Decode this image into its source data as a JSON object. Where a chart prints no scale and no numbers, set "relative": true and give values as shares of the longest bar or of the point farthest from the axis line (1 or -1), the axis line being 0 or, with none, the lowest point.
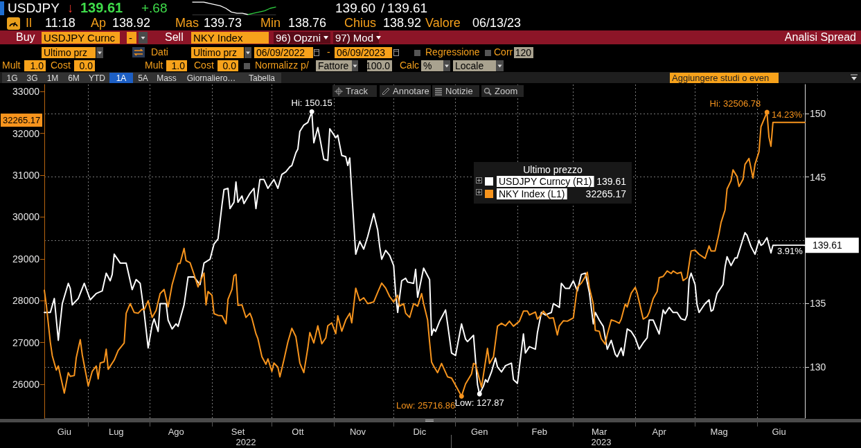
{
  "chart_data": [
    {
      "type": "line",
      "relative": true,
      "categories": [
        null,
        null,
        null,
        null,
        null,
        null,
        null,
        null,
        null,
        null,
        null,
        null,
        null,
        null,
        null,
        null
      ],
      "series": [
        {
          "color": "#ffffff",
          "values": [
            1,
            1,
            1,
            0.9,
            0.8,
            0.7,
            0.5,
            0.2,
            0.1,
            0.1,
            0,
            null,
            null,
            null,
            null,
            null
          ]
        },
        {
          "color": "#2ecc40",
          "values": [
            null,
            null,
            null,
            null,
            null,
            null,
            null,
            null,
            null,
            null,
            0,
            0.1,
            0.2,
            0.3,
            0.5,
            0.6
          ]
        }
      ]
    },
    {
      "type": "line",
      "xlim": [
        "2022-06-09",
        "2023-06-25"
      ],
      "xticks": [
        {
          "value": "2022-06-19",
          "label": "Giu"
        },
        {
          "value": "2022-07-01",
          "label": null
        },
        {
          "value": "2022-07-15",
          "label": "Lug"
        },
        {
          "value": "2022-08-01",
          "label": null
        },
        {
          "value": "2022-08-14",
          "label": "Ago"
        },
        {
          "value": "2022-09-01",
          "label": null
        },
        {
          "value": "2022-09-14",
          "label": "Set"
        },
        {
          "value": "2022-10-01",
          "label": null
        },
        {
          "value": "2022-10-14",
          "label": "Ott"
        },
        {
          "value": "2022-11-01",
          "label": null
        },
        {
          "value": "2022-11-13",
          "label": "Nov"
        },
        {
          "value": "2022-12-01",
          "label": null
        },
        {
          "value": "2022-12-14",
          "label": "Dic"
        },
        {
          "value": "2023-01-01",
          "label": null
        },
        {
          "value": "2023-01-13",
          "label": "Gen"
        },
        {
          "value": "2023-02-01",
          "label": null
        },
        {
          "value": "2023-02-12",
          "label": "Feb"
        },
        {
          "value": "2023-03-01",
          "label": null
        },
        {
          "value": "2023-03-14",
          "label": "Mar"
        },
        {
          "value": "2023-04-01",
          "label": null
        },
        {
          "value": "2023-04-13",
          "label": "Apr"
        },
        {
          "value": "2023-05-01",
          "label": null
        },
        {
          "value": "2023-05-13",
          "label": "Mag"
        },
        {
          "value": "2023-06-01",
          "label": null
        },
        {
          "value": "2023-06-12",
          "label": "Giu"
        }
      ],
      "ylim": [
        25190,
        33170
      ],
      "yticks": [
        26000,
        27000,
        28000,
        29000,
        30000,
        31000,
        32000,
        33000
      ],
      "y2lim": [
        125.95,
        152.3
      ],
      "y2ticks": [
        130,
        135,
        {
          "value": 140,
          "label": null
        },
        145,
        150
      ],
      "grid": true,
      "legend": "top right",
      "legend_title": "Ultimo prezzo",
      "series": [
        {
          "name": "USDJPY Curncy (R1)",
          "color": "#ffffff",
          "axis": "y2",
          "x": [
            "2022-06-09",
            "2022-06-12",
            "2022-06-14",
            "2022-06-16",
            "2022-06-18",
            "2022-06-21",
            "2022-06-22",
            "2022-06-23",
            "2022-06-26",
            "2022-06-29",
            "2022-07-02",
            "2022-07-05",
            "2022-07-08",
            "2022-07-10",
            "2022-07-12",
            "2022-07-13",
            "2022-07-14",
            "2022-07-17",
            "2022-07-20",
            "2022-07-23",
            "2022-07-25",
            "2022-07-27",
            "2022-07-29",
            "2022-07-31",
            "2022-08-02",
            "2022-08-03",
            "2022-08-05",
            "2022-08-06",
            "2022-08-09",
            "2022-08-10",
            "2022-08-12",
            "2022-08-14",
            "2022-08-15",
            "2022-08-18",
            "2022-08-20",
            "2022-08-23",
            "2022-08-26",
            "2022-08-28",
            "2022-08-31",
            "2022-09-02",
            "2022-09-04",
            "2022-09-06",
            "2022-09-07",
            "2022-09-09",
            "2022-09-10",
            "2022-09-12",
            "2022-09-13",
            "2022-09-14",
            "2022-09-16",
            "2022-09-17",
            "2022-09-20",
            "2022-09-22",
            "2022-09-23",
            "2022-09-25",
            "2022-09-27",
            "2022-09-29",
            "2022-10-02",
            "2022-10-04",
            "2022-10-06",
            "2022-10-08",
            "2022-10-10",
            "2022-10-11",
            "2022-10-13",
            "2022-10-14",
            "2022-10-15",
            "2022-10-17",
            "2022-10-19",
            "2022-10-21",
            "2022-10-22",
            "2022-10-24",
            "2022-10-25",
            "2022-10-27",
            "2022-10-29",
            "2022-10-30",
            "2022-11-02",
            "2022-11-03",
            "2022-11-05",
            "2022-11-07",
            "2022-11-08",
            "2022-11-09",
            "2022-11-10",
            "2022-11-12",
            "2022-11-14",
            "2022-11-16",
            "2022-11-18",
            "2022-11-21",
            "2022-11-23",
            "2022-11-24",
            "2022-11-25",
            "2022-11-27",
            "2022-11-29",
            "2022-12-01",
            "2022-12-02",
            "2022-12-03",
            "2022-12-05",
            "2022-12-07",
            "2022-12-08",
            "2022-12-11",
            "2022-12-12",
            "2022-12-13",
            "2022-12-16",
            "2022-12-19",
            "2022-12-20",
            "2022-12-21",
            "2022-12-22",
            "2022-12-24",
            "2022-12-27",
            "2022-12-28",
            "2022-12-30",
            "2023-01-01",
            "2023-01-04",
            "2023-01-06",
            "2023-01-07",
            "2023-01-10",
            "2023-01-12",
            "2023-01-13",
            "2023-01-15",
            "2023-01-16",
            "2023-01-17",
            "2023-01-19",
            "2023-01-21",
            "2023-01-22",
            "2023-01-24",
            "2023-01-26",
            "2023-01-29",
            "2023-01-30",
            "2023-02-01",
            "2023-02-04",
            "2023-02-05",
            "2023-02-07",
            "2023-02-10",
            "2023-02-11",
            "2023-02-13",
            "2023-02-15",
            "2023-02-18",
            "2023-02-19",
            "2023-02-22",
            "2023-02-23",
            "2023-02-25",
            "2023-02-27",
            "2023-03-01",
            "2023-03-03",
            "2023-03-05",
            "2023-03-07",
            "2023-03-09",
            "2023-03-11",
            "2023-03-12",
            "2023-03-14",
            "2023-03-16",
            "2023-03-18",
            "2023-03-20",
            "2023-03-22",
            "2023-03-23",
            "2023-03-25",
            "2023-03-26",
            "2023-03-28",
            "2023-03-30",
            "2023-04-01",
            "2023-04-03",
            "2023-04-05",
            "2023-04-07",
            "2023-04-08",
            "2023-04-10",
            "2023-04-13",
            "2023-04-15",
            "2023-04-16",
            "2023-04-18",
            "2023-04-20",
            "2023-04-22",
            "2023-04-24",
            "2023-04-26",
            "2023-04-27",
            "2023-04-28",
            "2023-04-29",
            "2023-05-01",
            "2023-05-02",
            "2023-05-03",
            "2023-05-06",
            "2023-05-08",
            "2023-05-09",
            "2023-05-10",
            "2023-05-12",
            "2023-05-15",
            "2023-05-16",
            "2023-05-17",
            "2023-05-19",
            "2023-05-21",
            "2023-05-22",
            "2023-05-24",
            "2023-05-26",
            "2023-05-27",
            "2023-05-29",
            "2023-05-31",
            "2023-06-02",
            "2023-06-03",
            "2023-06-04",
            "2023-06-06",
            "2023-06-08",
            "2023-06-09",
            "2023-06-25"
          ],
          "values": [
            134.3,
            134.3,
            135.4,
            132.1,
            135.0,
            136.6,
            136.2,
            134.9,
            135.4,
            136.6,
            135.3,
            135.8,
            136.0,
            137.4,
            136.8,
            137.3,
            138.9,
            138.2,
            138.2,
            136.1,
            136.9,
            136.6,
            134.3,
            131.5,
            133.3,
            133.8,
            132.8,
            135.0,
            135.0,
            133.7,
            133.0,
            133.4,
            133.2,
            134.9,
            137.1,
            137.1,
            136.5,
            138.2,
            138.5,
            139.7,
            140.1,
            142.8,
            144.0,
            144.1,
            142.5,
            143.0,
            144.6,
            143.0,
            143.5,
            142.9,
            143.7,
            144.1,
            142.5,
            144.8,
            144.8,
            144.1,
            144.8,
            144.1,
            145.2,
            145.4,
            145.8,
            145.9,
            146.9,
            147.2,
            148.6,
            149.1,
            149.3,
            150.15,
            147.7,
            148.9,
            148.1,
            146.4,
            146.3,
            148.8,
            148.1,
            148.3,
            146.7,
            146.6,
            145.9,
            146.5,
            143.8,
            138.9,
            139.9,
            139.3,
            140.3,
            142.1,
            140.8,
            139.5,
            138.5,
            139.2,
            138.8,
            138.0,
            135.8,
            134.3,
            136.8,
            137.0,
            136.7,
            136.6,
            137.7,
            135.5,
            137.8,
            136.9,
            132.5,
            133.0,
            132.8,
            133.6,
            134.5,
            133.4,
            131.1,
            130.9,
            133.4,
            132.2,
            132.0,
            132.5,
            128.6,
            127.87,
            128.5,
            129.0,
            128.8,
            129.6,
            130.7,
            130.0,
            129.6,
            130.1,
            130.3,
            129.0,
            128.7,
            132.6,
            131.1,
            131.6,
            131.4,
            132.7,
            134.3,
            134.1,
            134.3,
            135.0,
            134.7,
            136.6,
            136.2,
            136.2,
            136.8,
            136.0,
            137.3,
            137.4,
            135.9,
            133.4,
            134.3,
            133.7,
            133.2,
            131.4,
            132.1,
            131.0,
            130.8,
            131.5,
            130.9,
            133.0,
            132.8,
            132.3,
            131.4,
            131.9,
            132.3,
            133.7,
            133.7,
            132.6,
            134.5,
            134.2,
            134.7,
            134.3,
            134.3,
            133.8,
            133.7,
            134.1,
            136.9,
            137.4,
            136.5,
            134.9,
            134.3,
            135.0,
            135.3,
            134.4,
            134.5,
            135.8,
            136.5,
            137.9,
            138.7,
            138.0,
            138.6,
            138.6,
            139.6,
            140.6,
            140.4,
            139.5,
            138.9,
            140.0,
            139.6,
            139.7,
            140.2,
            139.0,
            139.61,
            139.61
          ],
          "value_labels": [
            null,
            null,
            null,
            null,
            null,
            null,
            null,
            null,
            null,
            null,
            null,
            null,
            null,
            null,
            null,
            null,
            null,
            null,
            null,
            null,
            null,
            null,
            null,
            null,
            null,
            null,
            null,
            null,
            null,
            null,
            null,
            null,
            null,
            null,
            null,
            null,
            null,
            null,
            null,
            null,
            null,
            null,
            null,
            null,
            null,
            null,
            null,
            null,
            null,
            null,
            null,
            null,
            null,
            null,
            null,
            null,
            null,
            null,
            null,
            null,
            null,
            null,
            null,
            null,
            null,
            null,
            null,
            "Hi: 150.15",
            null,
            null,
            null,
            null,
            null,
            null,
            null,
            null,
            null,
            null,
            null,
            null,
            null,
            null,
            null,
            null,
            null,
            null,
            null,
            null,
            null,
            null,
            null,
            null,
            null,
            null,
            null,
            null,
            null,
            null,
            null,
            null,
            null,
            null,
            null,
            null,
            null,
            null,
            null,
            null,
            null,
            null,
            null,
            null,
            null,
            null,
            null,
            "Low: 127.87",
            null,
            null,
            null,
            null,
            null,
            null,
            null,
            null,
            null,
            null,
            null,
            null,
            null,
            null,
            null,
            null,
            null,
            null,
            null,
            null,
            null,
            null,
            null,
            null,
            null,
            null,
            null,
            null,
            null,
            null,
            null,
            null,
            null,
            null,
            null,
            null,
            null,
            null,
            null,
            null,
            null,
            null,
            null,
            null,
            null,
            null,
            null,
            null,
            null,
            null,
            null,
            null,
            null,
            null,
            null,
            null,
            null,
            null,
            null,
            null,
            null,
            null,
            null,
            null,
            null,
            null,
            null,
            null,
            null,
            null,
            null,
            null,
            null,
            null,
            null,
            null,
            null,
            null,
            null,
            null,
            null,
            null,
            null,
            "139.61"
          ]
        },
        {
          "name": "NKY Index (L1)",
          "color": "#f7941d",
          "axis": "y",
          "x": [
            "2022-06-09",
            "2022-06-10",
            "2022-06-12",
            "2022-06-13",
            "2022-06-15",
            "2022-06-16",
            "2022-06-18",
            "2022-06-19",
            "2022-06-21",
            "2022-06-22",
            "2022-06-24",
            "2022-06-25",
            "2022-06-27",
            "2022-06-28",
            "2022-07-01",
            "2022-07-03",
            "2022-07-05",
            "2022-07-06",
            "2022-07-07",
            "2022-07-09",
            "2022-07-10",
            "2022-07-11",
            "2022-07-14",
            "2022-07-16",
            "2022-07-19",
            "2022-07-20",
            "2022-07-22",
            "2022-07-24",
            "2022-07-26",
            "2022-07-28",
            "2022-07-29",
            "2022-07-31",
            "2022-08-02",
            "2022-08-04",
            "2022-08-06",
            "2022-08-08",
            "2022-08-10",
            "2022-08-12",
            "2022-08-15",
            "2022-08-16",
            "2022-08-18",
            "2022-08-19",
            "2022-08-21",
            "2022-08-23",
            "2022-08-25",
            "2022-08-26",
            "2022-08-28",
            "2022-08-29",
            "2022-08-30",
            "2022-09-01",
            "2022-09-02",
            "2022-09-04",
            "2022-09-06",
            "2022-09-08",
            "2022-09-09",
            "2022-09-11",
            "2022-09-12",
            "2022-09-13",
            "2022-09-14",
            "2022-09-16",
            "2022-09-18",
            "2022-09-20",
            "2022-09-21",
            "2022-09-23",
            "2022-09-24",
            "2022-09-26",
            "2022-09-28",
            "2022-09-29",
            "2022-10-01",
            "2022-10-02",
            "2022-10-04",
            "2022-10-05",
            "2022-10-07",
            "2022-10-09",
            "2022-10-11",
            "2022-10-13",
            "2022-10-15",
            "2022-10-17",
            "2022-10-19",
            "2022-10-20",
            "2022-10-22",
            "2022-10-24",
            "2022-10-26",
            "2022-10-28",
            "2022-10-29",
            "2022-10-31",
            "2022-11-02",
            "2022-11-03",
            "2022-11-05",
            "2022-11-07",
            "2022-11-09",
            "2022-11-10",
            "2022-11-12",
            "2022-11-14",
            "2022-11-16",
            "2022-11-18",
            "2022-11-21",
            "2022-11-23",
            "2022-11-25",
            "2022-11-27",
            "2022-11-29",
            "2022-12-01",
            "2022-12-03",
            "2022-12-04",
            "2022-12-06",
            "2022-12-07",
            "2022-12-09",
            "2022-12-11",
            "2022-12-13",
            "2022-12-15",
            "2022-12-16",
            "2022-12-18",
            "2022-12-19",
            "2022-12-20",
            "2022-12-21",
            "2022-12-23",
            "2022-12-25",
            "2022-12-28",
            "2022-12-30",
            "2023-01-04",
            "2023-01-06",
            "2023-01-09",
            "2023-01-10",
            "2023-01-11",
            "2023-01-14",
            "2023-01-17",
            "2023-01-18",
            "2023-01-20",
            "2023-01-22",
            "2023-01-24",
            "2023-01-26",
            "2023-01-28",
            "2023-01-30",
            "2023-02-02",
            "2023-02-04",
            "2023-02-06",
            "2023-02-07",
            "2023-02-10",
            "2023-02-11",
            "2023-02-13",
            "2023-02-14",
            "2023-02-17",
            "2023-02-19",
            "2023-02-21",
            "2023-02-22",
            "2023-02-24",
            "2023-02-26",
            "2023-03-01",
            "2023-03-03",
            "2023-03-05",
            "2023-03-07",
            "2023-03-08",
            "2023-03-09",
            "2023-03-11",
            "2023-03-12",
            "2023-03-14",
            "2023-03-15",
            "2023-03-17",
            "2023-03-18",
            "2023-03-20",
            "2023-03-22",
            "2023-03-24",
            "2023-03-25",
            "2023-03-27",
            "2023-03-28",
            "2023-03-30",
            "2023-04-01",
            "2023-04-02",
            "2023-04-05",
            "2023-04-07",
            "2023-04-08",
            "2023-04-10",
            "2023-04-12",
            "2023-04-13",
            "2023-04-15",
            "2023-04-17",
            "2023-04-19",
            "2023-04-20",
            "2023-04-22",
            "2023-04-24",
            "2023-04-25",
            "2023-04-27",
            "2023-04-29",
            "2023-05-01",
            "2023-05-03",
            "2023-05-06",
            "2023-05-08",
            "2023-05-09",
            "2023-05-11",
            "2023-05-13",
            "2023-05-14",
            "2023-05-16",
            "2023-05-17",
            "2023-05-19",
            "2023-05-20",
            "2023-05-22",
            "2023-05-23",
            "2023-05-25",
            "2023-05-26",
            "2023-05-28",
            "2023-05-30",
            "2023-05-31",
            "2023-06-02",
            "2023-06-03",
            "2023-06-06",
            "2023-06-07",
            "2023-06-08",
            "2023-06-09",
            "2023-06-25"
          ],
          "values": [
            28250,
            27900,
            27010,
            26680,
            26340,
            26440,
            26010,
            25790,
            26280,
            26190,
            26210,
            26640,
            27070,
            26710,
            25960,
            26310,
            26440,
            26130,
            26510,
            26540,
            26840,
            26360,
            26580,
            26810,
            26990,
            27700,
            27930,
            27720,
            27700,
            27800,
            27780,
            28000,
            27600,
            27770,
            28170,
            28270,
            27850,
            28380,
            28890,
            28890,
            29250,
            28960,
            28910,
            28630,
            28330,
            28460,
            28660,
            27900,
            28220,
            28130,
            27690,
            27650,
            27640,
            27450,
            28030,
            28270,
            28600,
            28630,
            27890,
            27900,
            27600,
            27700,
            27580,
            27210,
            27090,
            26660,
            26480,
            26610,
            26310,
            26510,
            26410,
            26180,
            26580,
            27010,
            27340,
            27140,
            26510,
            26280,
            26870,
            27240,
            26990,
            27400,
            26970,
            27110,
            27400,
            27470,
            27210,
            27640,
            27270,
            27540,
            27700,
            27470,
            28300,
            28000,
            28070,
            27930,
            27970,
            28200,
            28420,
            28300,
            28100,
            27970,
            28130,
            27870,
            27930,
            27700,
            27600,
            27930,
            27870,
            28170,
            27930,
            27540,
            27010,
            26530,
            26440,
            26280,
            26500,
            26180,
            26150,
            25716.86,
            26010,
            26250,
            26500,
            26480,
            25930,
            26860,
            26500,
            26660,
            27390,
            27460,
            27400,
            27510,
            27390,
            27510,
            27750,
            27750,
            27660,
            27730,
            27560,
            27670,
            27750,
            27580,
            27590,
            27180,
            27400,
            27520,
            27510,
            27590,
            28320,
            28420,
            28580,
            28680,
            28320,
            27920,
            27290,
            27270,
            27090,
            26960,
            27190,
            27540,
            27510,
            27460,
            27560,
            27920,
            27850,
            28180,
            28320,
            28180,
            27560,
            27620,
            27720,
            28050,
            28220,
            28550,
            28580,
            28710,
            28650,
            28710,
            28650,
            28680,
            28480,
            28550,
            29190,
            29210,
            29110,
            29010,
            29310,
            29190,
            29190,
            29610,
            29870,
            30170,
            30670,
            30870,
            31130,
            30970,
            30730,
            30900,
            31260,
            31400,
            30930,
            31260,
            31560,
            32160,
            32506.78,
            31910,
            31690,
            32265.17,
            32265.17
          ],
          "value_labels": [
            null,
            null,
            null,
            null,
            null,
            null,
            null,
            null,
            null,
            null,
            null,
            null,
            null,
            null,
            null,
            null,
            null,
            null,
            null,
            null,
            null,
            null,
            null,
            null,
            null,
            null,
            null,
            null,
            null,
            null,
            null,
            null,
            null,
            null,
            null,
            null,
            null,
            null,
            null,
            null,
            null,
            null,
            null,
            null,
            null,
            null,
            null,
            null,
            null,
            null,
            null,
            null,
            null,
            null,
            null,
            null,
            null,
            null,
            null,
            null,
            null,
            null,
            null,
            null,
            null,
            null,
            null,
            null,
            null,
            null,
            null,
            null,
            null,
            null,
            null,
            null,
            null,
            null,
            null,
            null,
            null,
            null,
            null,
            null,
            null,
            null,
            null,
            null,
            null,
            null,
            null,
            null,
            null,
            null,
            null,
            null,
            null,
            null,
            null,
            null,
            null,
            null,
            null,
            null,
            null,
            null,
            null,
            null,
            null,
            null,
            null,
            null,
            null,
            null,
            null,
            null,
            null,
            null,
            null,
            "Low: 25716.86",
            null,
            null,
            null,
            null,
            null,
            null,
            null,
            null,
            null,
            null,
            null,
            null,
            null,
            null,
            null,
            null,
            null,
            null,
            null,
            null,
            null,
            null,
            null,
            null,
            null,
            null,
            null,
            null,
            null,
            null,
            null,
            null,
            null,
            null,
            null,
            null,
            null,
            null,
            null,
            null,
            null,
            null,
            null,
            null,
            null,
            null,
            null,
            null,
            null,
            null,
            null,
            null,
            null,
            null,
            null,
            null,
            null,
            null,
            null,
            null,
            null,
            null,
            null,
            null,
            null,
            null,
            null,
            null,
            null,
            null,
            null,
            null,
            null,
            null,
            null,
            null,
            null,
            null,
            null,
            null,
            null,
            null,
            null,
            null,
            "Hi: 32506.78",
            null,
            null,
            null,
            null
          ]
        }
      ],
      "annotations": [
        "USDJPY",
        "↓",
        "139.61",
        "+.68",
        "139.60",
        "/",
        "139.61",
        "Il",
        "11:18",
        "Ap",
        "138.92",
        "Mas",
        "139.73",
        "Min",
        "138.76",
        "Chius",
        "138.92",
        "Valore",
        "06/13/23",
        "Buy",
        "USDJPY Curnc",
        "-",
        "Sell",
        "NKY Index",
        "96) Opzni",
        "97) Mod",
        "Analisi Spread",
        "Ultimo prz",
        "Dati",
        "Ultimo prz",
        "06/09/2022",
        "-",
        "06/09/2023",
        "Regressione",
        "Corr",
        "120",
        "Mult",
        "1.0",
        "Cost",
        "0.0",
        "Mult",
        "1.0",
        "Cost",
        "0.0",
        "Normalizz p/",
        "Fattore",
        "100.0",
        "Calc",
        "%",
        "Locale",
        "1G",
        "3G",
        "1M",
        "6M",
        "YTD",
        "1A",
        "5A",
        "Mass",
        "Giornaliero…",
        "Tabella",
        "Aggiungere studi o even",
        "Track",
        "Annotare",
        "Notizie",
        "Zoom",
        "2022",
        "2023",
        "32265.17",
        "3.91%",
        {
          "text": "14.23%",
          "x": "2023-06-25",
          "y": 32265.17
        }
      ]
    }
  ]
}
